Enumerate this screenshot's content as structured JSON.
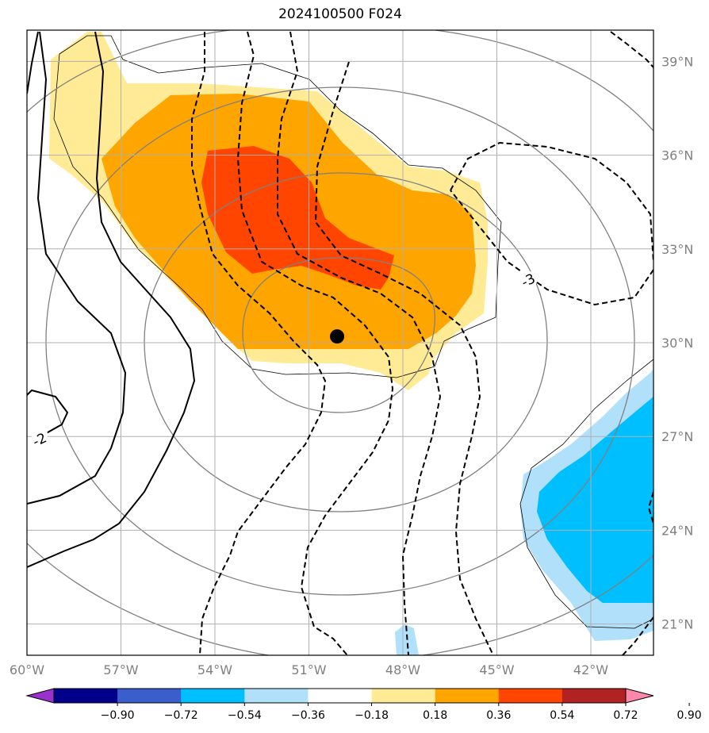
{
  "title": "2024100500 F024",
  "map": {
    "lon_range": [
      -60,
      -40
    ],
    "lat_range": [
      20,
      40
    ],
    "lon_ticks": [
      {
        "lon": -60,
        "label": "60°W"
      },
      {
        "lon": -57,
        "label": "57°W"
      },
      {
        "lon": -54,
        "label": "54°W"
      },
      {
        "lon": -51,
        "label": "51°W"
      },
      {
        "lon": -48,
        "label": "48°W"
      },
      {
        "lon": -45,
        "label": "45°W"
      },
      {
        "lon": -42,
        "label": "42°W"
      }
    ],
    "lat_ticks": [
      {
        "lat": 21,
        "label": "21°N"
      },
      {
        "lat": 24,
        "label": "24°N"
      },
      {
        "lat": 27,
        "label": "27°N"
      },
      {
        "lat": 30,
        "label": "30°N"
      },
      {
        "lat": 33,
        "label": "33°N"
      },
      {
        "lat": 36,
        "label": "36°N"
      },
      {
        "lat": 39,
        "label": "39°N"
      }
    ],
    "contour_labels": [
      {
        "text": "-3",
        "lon": -44.0,
        "lat": 32.0
      },
      {
        "text": "-2",
        "lon": -59.6,
        "lat": 26.9
      }
    ],
    "storm_center": {
      "lon": -50.1,
      "lat": 30.2
    },
    "colors": {
      "light_yellow": "#ffeb96",
      "orange": "#ffa500",
      "red_orange": "#ff4500",
      "light_blue": "#b0e0fa",
      "deep_sky_blue": "#00bfff",
      "grid": "#b0b0b0",
      "gray_contour": "#808080"
    }
  },
  "colorbar": {
    "ticks": [
      "−0.90",
      "−0.72",
      "−0.54",
      "−0.36",
      "−0.18",
      "0.18",
      "0.36",
      "0.54",
      "0.72",
      "0.90"
    ],
    "colors": [
      "#9932cc",
      "#00008b",
      "#3a5fcd",
      "#00bfff",
      "#b0e0fa",
      "#ffffff",
      "#ffeb96",
      "#ffa500",
      "#ff4500",
      "#b22222",
      "#ff88aa"
    ]
  }
}
